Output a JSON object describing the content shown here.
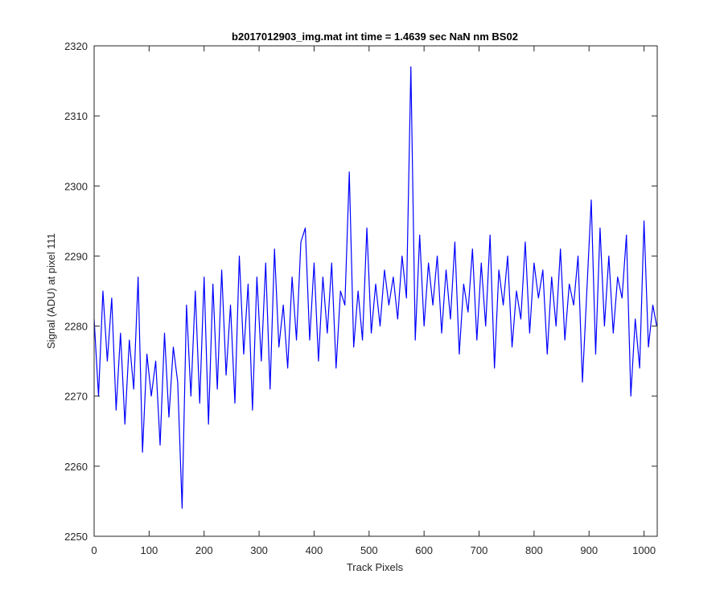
{
  "chart_data": {
    "type": "line",
    "title": "b2017012903_img.mat int time = 1.4639 sec  NaN nm BS02",
    "xlabel": "Track Pixels",
    "ylabel": "Signal (ADU) at pixel 111",
    "xlim": [
      0,
      1024
    ],
    "ylim": [
      2250,
      2320
    ],
    "xticks": [
      0,
      100,
      200,
      300,
      400,
      500,
      600,
      700,
      800,
      900,
      1000
    ],
    "yticks": [
      2250,
      2260,
      2270,
      2280,
      2290,
      2300,
      2310,
      2320
    ],
    "grid": false,
    "legend": "none",
    "line_color": "#0000ff",
    "series": [
      {
        "x": [
          0,
          8,
          16,
          24,
          32,
          40,
          48,
          56,
          64,
          72,
          80,
          88,
          96,
          104,
          112,
          120,
          128,
          136,
          144,
          152,
          160,
          168,
          176,
          184,
          192,
          200,
          208,
          216,
          224,
          232,
          240,
          248,
          256,
          264,
          272,
          280,
          288,
          296,
          304,
          312,
          320,
          328,
          336,
          344,
          352,
          360,
          368,
          376,
          384,
          392,
          400,
          408,
          416,
          424,
          432,
          440,
          448,
          456,
          464,
          472,
          480,
          488,
          496,
          504,
          512,
          520,
          528,
          536,
          544,
          552,
          560,
          568,
          576,
          584,
          592,
          600,
          608,
          616,
          624,
          632,
          640,
          648,
          656,
          664,
          672,
          680,
          688,
          696,
          704,
          712,
          720,
          728,
          736,
          744,
          752,
          760,
          768,
          776,
          784,
          792,
          800,
          808,
          816,
          824,
          832,
          840,
          848,
          856,
          864,
          872,
          880,
          888,
          896,
          904,
          912,
          920,
          928,
          936,
          944,
          952,
          960,
          968,
          976,
          984,
          992,
          1000,
          1008,
          1016,
          1023
        ],
        "values": [
          2281,
          2270,
          2285,
          2275,
          2284,
          2268,
          2279,
          2266,
          2278,
          2271,
          2287,
          2262,
          2276,
          2270,
          2275,
          2263,
          2279,
          2267,
          2277,
          2272,
          2254,
          2283,
          2270,
          2285,
          2269,
          2287,
          2266,
          2286,
          2271,
          2288,
          2273,
          2283,
          2269,
          2290,
          2276,
          2286,
          2268,
          2287,
          2275,
          2289,
          2271,
          2291,
          2277,
          2283,
          2274,
          2287,
          2278,
          2292,
          2294,
          2278,
          2289,
          2275,
          2287,
          2279,
          2289,
          2274,
          2285,
          2283,
          2302,
          2277,
          2285,
          2278,
          2294,
          2279,
          2286,
          2280,
          2288,
          2283,
          2287,
          2281,
          2290,
          2284,
          2317,
          2278,
          2293,
          2280,
          2289,
          2283,
          2290,
          2279,
          2288,
          2281,
          2292,
          2276,
          2286,
          2282,
          2291,
          2278,
          2289,
          2280,
          2293,
          2274,
          2288,
          2283,
          2290,
          2277,
          2285,
          2281,
          2292,
          2279,
          2289,
          2284,
          2288,
          2276,
          2287,
          2280,
          2291,
          2278,
          2286,
          2283,
          2290,
          2272,
          2285,
          2298,
          2276,
          2294,
          2280,
          2290,
          2279,
          2287,
          2284,
          2293,
          2270,
          2281,
          2274,
          2295,
          2277,
          2283,
          2280
        ]
      }
    ]
  }
}
